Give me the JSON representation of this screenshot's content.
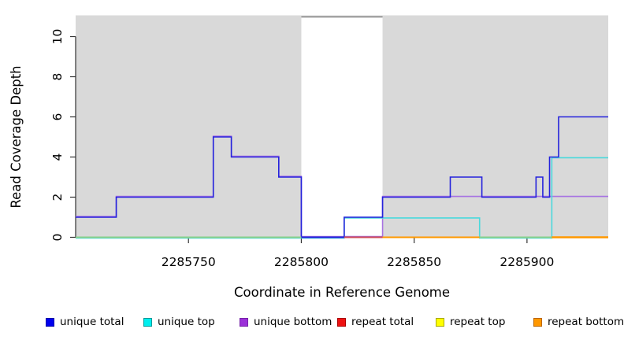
{
  "chart_data": {
    "type": "line",
    "title": "",
    "xlabel": "Coordinate in Reference Genome",
    "ylabel": "Read Coverage Depth",
    "xlim": [
      2285700,
      2285936
    ],
    "ylim": [
      0,
      11.06
    ],
    "x_ticks": [
      2285750,
      2285800,
      2285850,
      2285900
    ],
    "y_ticks": [
      0,
      2,
      4,
      6,
      8,
      10
    ],
    "grid": "off",
    "legend_position": "bottom",
    "panel_bg": "#d9d9d9",
    "axis_color": "#333333",
    "gap_region": {
      "from": 2285800,
      "to": 2285836,
      "fill": "#ffffff",
      "top_border": "#808080"
    },
    "series": [
      {
        "name": "unique total",
        "color": "#0000ee",
        "line_color": "#2523dc",
        "points": [
          [
            2285700,
            1
          ],
          [
            2285718,
            2
          ],
          [
            2285761,
            5
          ],
          [
            2285769,
            4
          ],
          [
            2285790,
            3
          ],
          [
            2285800,
            0
          ],
          [
            2285819,
            1
          ],
          [
            2285836,
            2
          ],
          [
            2285866,
            3
          ],
          [
            2285880,
            2
          ],
          [
            2285904,
            3
          ],
          [
            2285907,
            2
          ],
          [
            2285910,
            4
          ],
          [
            2285914,
            6
          ],
          [
            2285936,
            6
          ]
        ]
      },
      {
        "name": "unique top",
        "color": "#00eeee",
        "line_color": "#4ad9dc",
        "points": [
          [
            2285700,
            0
          ],
          [
            2285819,
            1
          ],
          [
            2285879,
            0
          ],
          [
            2285911,
            4
          ],
          [
            2285936,
            4
          ]
        ]
      },
      {
        "name": "unique bottom",
        "color": "#9b30d8",
        "line_color": "#a873e2",
        "points": [
          [
            2285700,
            1
          ],
          [
            2285718,
            2
          ],
          [
            2285761,
            5
          ],
          [
            2285769,
            4
          ],
          [
            2285790,
            3
          ],
          [
            2285800,
            0
          ],
          [
            2285836,
            2
          ],
          [
            2285936,
            2
          ]
        ]
      },
      {
        "name": "repeat total",
        "color": "#ee1111",
        "line_color": "#cd4a5a",
        "points": [
          [
            2285700,
            0
          ],
          [
            2285936,
            0
          ]
        ]
      },
      {
        "name": "repeat top",
        "color": "#ffff00",
        "line_color": "#d8d840",
        "points": [
          [
            2285700,
            0
          ],
          [
            2285936,
            0
          ]
        ]
      },
      {
        "name": "repeat bottom",
        "color": "#ff9800",
        "line_color": "#ff9800",
        "points": [
          [
            2285700,
            0
          ],
          [
            2285936,
            0
          ]
        ]
      }
    ],
    "baseline_segments": [
      {
        "from": 2285700,
        "to": 2285800,
        "color": "#8cd08c",
        "width": 2
      },
      {
        "from": 2285800,
        "to": 2285819,
        "color": "#2523dc",
        "width": 2
      },
      {
        "from": 2285819,
        "to": 2285836,
        "color": "#cd4a5a",
        "width": 2
      },
      {
        "from": 2285836,
        "to": 2285879,
        "color": "#ff9800",
        "width": 2
      },
      {
        "from": 2285879,
        "to": 2285911,
        "color": "#8cd08c",
        "width": 2
      },
      {
        "from": 2285911,
        "to": 2285936,
        "color": "#ff9800",
        "width": 2.6
      }
    ],
    "legend": [
      {
        "label": "unique total",
        "fill": "#0000ee",
        "border": "#0000aa"
      },
      {
        "label": "unique top",
        "fill": "#00eeee",
        "border": "#009999"
      },
      {
        "label": "unique bottom",
        "fill": "#9b30d8",
        "border": "#7722aa"
      },
      {
        "label": "repeat total",
        "fill": "#ee1111",
        "border": "#aa0000"
      },
      {
        "label": "repeat top",
        "fill": "#ffff00",
        "border": "#aaaa00"
      },
      {
        "label": "repeat bottom",
        "fill": "#ff9800",
        "border": "#bb6600"
      }
    ]
  }
}
